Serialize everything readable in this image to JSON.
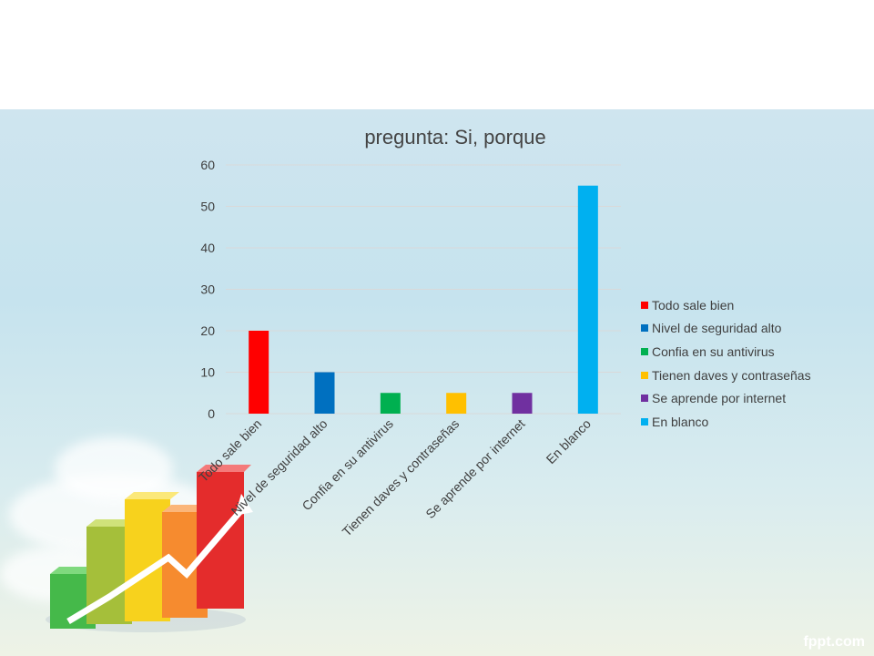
{
  "chart_data": {
    "type": "bar",
    "title": "pregunta: Si, porque",
    "categories": [
      "Todo sale bien",
      "Nivel de seguridad alto",
      "Confia en su antivirus",
      "Tienen daves y contraseñas",
      "Se aprende por internet",
      "En blanco"
    ],
    "values": [
      20,
      10,
      5,
      5,
      5,
      55
    ],
    "colors": [
      "#ff0000",
      "#0070c0",
      "#00b050",
      "#ffc000",
      "#7030a0",
      "#00b0f0"
    ],
    "ylim": [
      0,
      60
    ],
    "yticks": [
      0,
      10,
      20,
      30,
      40,
      50,
      60
    ],
    "grid": true,
    "legend_position": "right",
    "xlabel": "",
    "ylabel": ""
  },
  "footer": {
    "watermark": "fppt.com"
  },
  "decoration": {
    "illustration_icon": "rising-bar-chart-with-arrow-icon"
  }
}
